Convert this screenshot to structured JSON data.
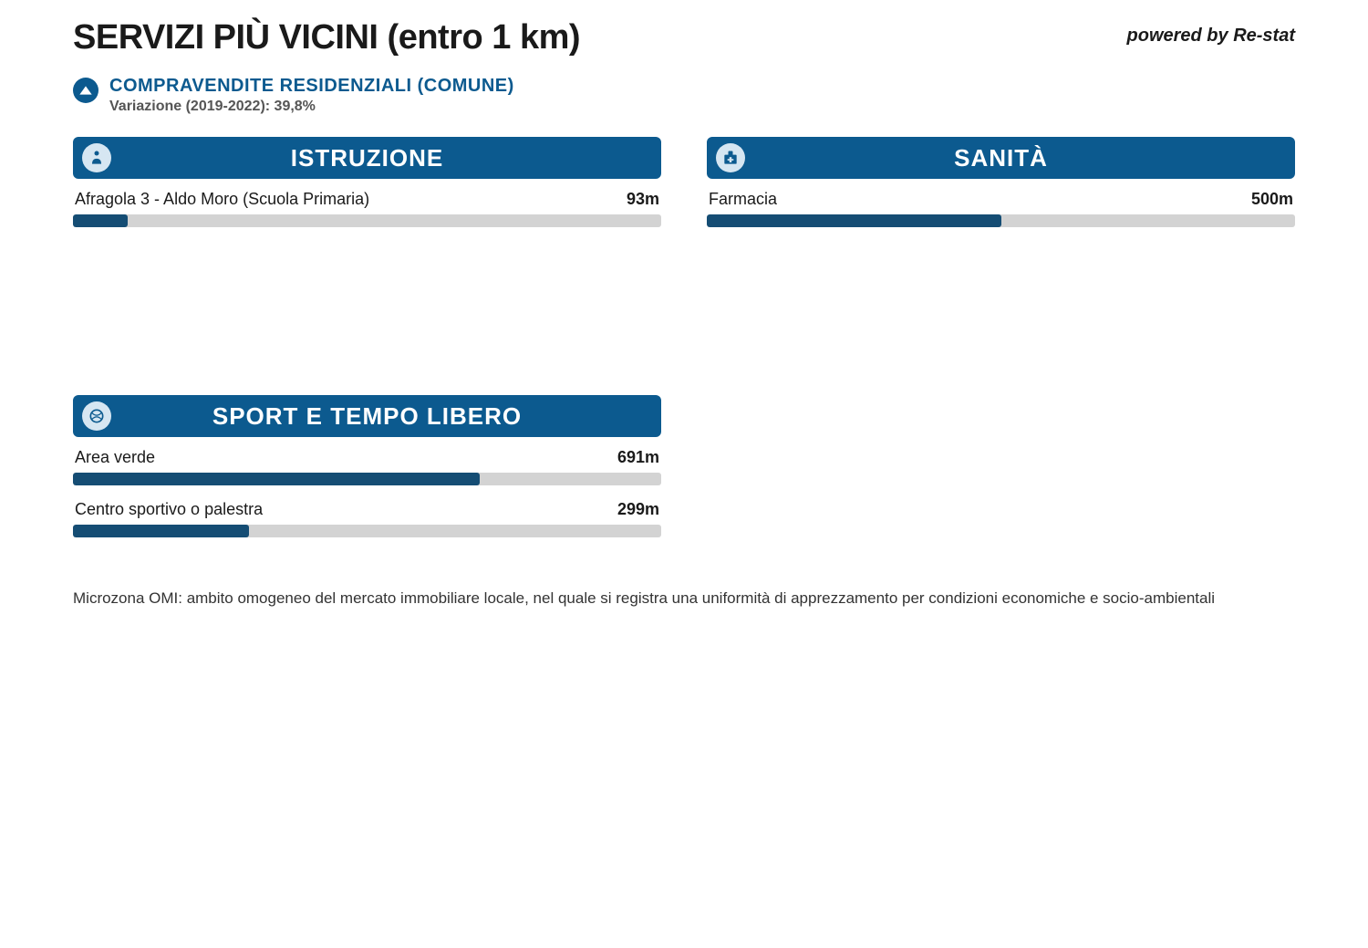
{
  "header": {
    "title": "SERVIZI PIÙ VICINI (entro 1 km)",
    "powered_by": "powered by Re-stat"
  },
  "stat": {
    "title": "COMPRAVENDITE RESIDENZIALI (COMUNE)",
    "subtitle": "Variazione (2019-2022): 39,8%",
    "direction": "up"
  },
  "max_distance_m": 1000,
  "colors": {
    "brand": "#0c5a8f",
    "bar_fill": "#154d74",
    "bar_track": "#d3d3d3",
    "icon_badge_bg": "#d6e6f2",
    "text": "#1a1a1a",
    "muted": "#555555",
    "background": "#ffffff"
  },
  "cards": [
    {
      "title": "ISTRUZIONE",
      "icon": "education-icon",
      "items": [
        {
          "label": "Afragola 3 - Aldo Moro (Scuola Primaria)",
          "distance_m": 93,
          "display": "93m"
        }
      ]
    },
    {
      "title": "SANITÀ",
      "icon": "health-icon",
      "items": [
        {
          "label": "Farmacia",
          "distance_m": 500,
          "display": "500m"
        }
      ]
    },
    {
      "title": "SPORT E TEMPO LIBERO",
      "icon": "sport-icon",
      "items": [
        {
          "label": "Area verde",
          "distance_m": 691,
          "display": "691m"
        },
        {
          "label": "Centro sportivo o palestra",
          "distance_m": 299,
          "display": "299m"
        }
      ]
    }
  ],
  "footnote": "Microzona OMI: ambito omogeneo del mercato immobiliare locale, nel quale si registra una uniformità di apprezzamento per condizioni economiche e socio-ambientali"
}
